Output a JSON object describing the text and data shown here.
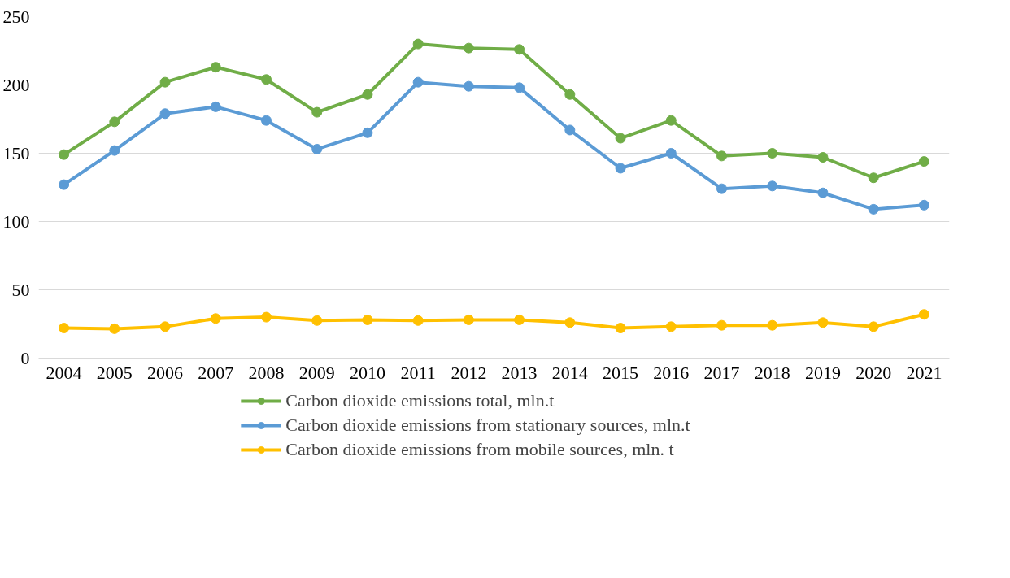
{
  "chart_data": {
    "type": "line",
    "categories": [
      "2004",
      "2005",
      "2006",
      "2007",
      "2008",
      "2009",
      "2010",
      "2011",
      "2012",
      "2013",
      "2014",
      "2015",
      "2016",
      "2017",
      "2018",
      "2019",
      "2020",
      "2021"
    ],
    "series": [
      {
        "name": "Carbon dioxide emissions total, mln.t",
        "color": "#70ad47",
        "values": [
          149,
          173,
          202,
          213,
          204,
          180,
          193,
          230,
          227,
          226,
          193,
          161,
          174,
          148,
          150,
          147,
          132,
          144
        ]
      },
      {
        "name": "Carbon dioxide emissions from stationary sources, mln.t",
        "color": "#5b9bd5",
        "values": [
          127,
          152,
          179,
          184,
          174,
          153,
          165,
          202,
          199,
          198,
          167,
          139,
          150,
          124,
          126,
          121,
          109,
          112
        ]
      },
      {
        "name": "Carbon dioxide emissions from mobile sources, mln. t",
        "color": "#ffc000",
        "values": [
          22,
          21.5,
          23,
          29,
          30,
          27.5,
          28,
          27.5,
          28,
          28,
          26,
          22,
          23,
          24,
          24,
          26,
          23,
          32
        ]
      }
    ],
    "ylim": [
      0,
      250
    ],
    "yticks": [
      0,
      50,
      100,
      150,
      200,
      250
    ],
    "grid": "y",
    "legend": "bottom",
    "marker": "circle",
    "line_style": "solid"
  }
}
